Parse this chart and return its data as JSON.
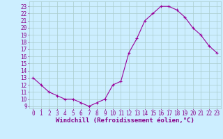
{
  "x": [
    0,
    1,
    2,
    3,
    4,
    5,
    6,
    7,
    8,
    9,
    10,
    11,
    12,
    13,
    14,
    15,
    16,
    17,
    18,
    19,
    20,
    21,
    22,
    23
  ],
  "y": [
    13,
    12,
    11,
    10.5,
    10,
    10,
    9.5,
    9,
    9.5,
    10,
    12,
    12.5,
    16.5,
    18.5,
    21,
    22,
    23,
    23,
    22.5,
    21.5,
    20,
    19,
    17.5,
    16.5
  ],
  "line_color": "#990099",
  "marker": "+",
  "bg_color": "#cceeff",
  "grid_color": "#aacccc",
  "xlabel": "Windchill (Refroidissement éolien,°C)",
  "xlim": [
    -0.5,
    23.5
  ],
  "ylim": [
    8.7,
    23.7
  ],
  "yticks": [
    9,
    10,
    11,
    12,
    13,
    14,
    15,
    16,
    17,
    18,
    19,
    20,
    21,
    22,
    23
  ],
  "xticks": [
    0,
    1,
    2,
    3,
    4,
    5,
    6,
    7,
    8,
    9,
    10,
    11,
    12,
    13,
    14,
    15,
    16,
    17,
    18,
    19,
    20,
    21,
    22,
    23
  ],
  "label_color": "#880088",
  "tick_color": "#880088",
  "xlabel_fontsize": 6.5,
  "tick_fontsize": 5.5,
  "linewidth": 0.8,
  "markersize": 3.5,
  "markeredgewidth": 0.8
}
